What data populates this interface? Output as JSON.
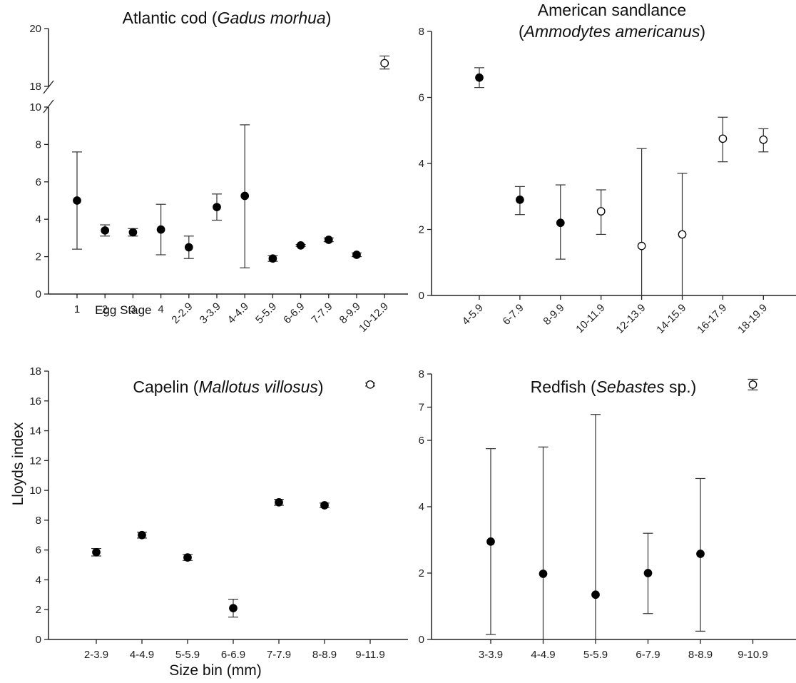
{
  "figure": {
    "ylabel": "Lloyds index",
    "xlabel": "Size bin (mm)"
  },
  "chart_data": [
    {
      "id": "cod",
      "type": "scatter",
      "title_parts": [
        {
          "text": "Atlantic cod (",
          "italic": false
        },
        {
          "text": "Gadus morhua",
          "italic": true
        },
        {
          "text": ")",
          "italic": false
        }
      ],
      "categories": [
        "1",
        "2",
        "3",
        "4",
        "2-2.9",
        "3-3.9",
        "4-4.9",
        "5-5.9",
        "6-6.9",
        "7-7.9",
        "8-9.9",
        "10-12.9"
      ],
      "category_group_label": "Egg Stage",
      "values": [
        5.0,
        3.4,
        3.3,
        3.45,
        2.5,
        4.65,
        5.25,
        1.9,
        2.6,
        2.9,
        2.1,
        18.8
      ],
      "lower": [
        2.4,
        3.1,
        3.1,
        2.1,
        1.9,
        3.95,
        1.4,
        1.75,
        2.55,
        2.8,
        2.0,
        18.6
      ],
      "upper": [
        7.6,
        3.7,
        3.5,
        4.8,
        3.1,
        5.35,
        9.05,
        2.05,
        2.65,
        3.0,
        2.2,
        19.05
      ],
      "filled": [
        true,
        true,
        true,
        true,
        true,
        true,
        true,
        true,
        true,
        true,
        true,
        false
      ],
      "y_ticks": [
        0,
        2,
        4,
        6,
        8,
        10,
        18,
        20
      ],
      "ylim": [
        0,
        20
      ],
      "axis_break": [
        10,
        18
      ],
      "x_tick_rotation": "rotated"
    },
    {
      "id": "sandlance",
      "type": "scatter",
      "title_parts": [
        {
          "text": "American sandlance",
          "italic": false,
          "line": 1
        },
        {
          "text": "(",
          "italic": false,
          "line": 2
        },
        {
          "text": "Ammodytes americanus",
          "italic": true,
          "line": 2
        },
        {
          "text": ")",
          "italic": false,
          "line": 2
        }
      ],
      "categories": [
        "4-5.9",
        "6-7.9",
        "8-9.9",
        "10-11.9",
        "12-13.9",
        "14-15.9",
        "16-17.9",
        "18-19.9"
      ],
      "values": [
        6.6,
        2.9,
        2.2,
        2.55,
        1.5,
        1.85,
        4.75,
        4.72
      ],
      "lower": [
        6.3,
        2.45,
        1.1,
        1.85,
        0.0,
        0.0,
        4.05,
        4.35
      ],
      "upper": [
        6.9,
        3.3,
        3.35,
        3.2,
        4.45,
        3.7,
        5.4,
        5.05
      ],
      "filled": [
        true,
        true,
        true,
        false,
        false,
        false,
        false,
        false
      ],
      "y_ticks": [
        0,
        2,
        4,
        6,
        8
      ],
      "ylim": [
        0,
        8
      ],
      "x_tick_rotation": "rotated"
    },
    {
      "id": "capelin",
      "type": "scatter",
      "title_parts": [
        {
          "text": "Capelin (",
          "italic": false
        },
        {
          "text": "Mallotus villosus",
          "italic": true
        },
        {
          "text": ")",
          "italic": false
        }
      ],
      "categories": [
        "2-3.9",
        "4-4.9",
        "5-5.9",
        "6-6.9",
        "7-7.9",
        "8-8.9",
        "9-11.9"
      ],
      "values": [
        5.85,
        7.0,
        5.5,
        2.1,
        9.2,
        9.0,
        17.1
      ],
      "lower": [
        5.6,
        6.8,
        5.3,
        1.5,
        9.0,
        8.85,
        17.0
      ],
      "upper": [
        6.1,
        7.2,
        5.7,
        2.7,
        9.4,
        9.15,
        17.2
      ],
      "filled": [
        true,
        true,
        true,
        true,
        true,
        true,
        false
      ],
      "y_ticks": [
        0,
        2,
        4,
        6,
        8,
        10,
        12,
        14,
        16,
        18
      ],
      "ylim": [
        0,
        18
      ],
      "x_tick_rotation": "horizontal"
    },
    {
      "id": "redfish",
      "type": "scatter",
      "title_parts": [
        {
          "text": "Redfish (",
          "italic": false
        },
        {
          "text": "Sebastes",
          "italic": true
        },
        {
          "text": " sp.)",
          "italic": false
        }
      ],
      "categories": [
        "3-3.9",
        "4-4.9",
        "5-5.9",
        "6-7.9",
        "8-8.9",
        "9-10.9"
      ],
      "values": [
        2.95,
        1.98,
        1.35,
        2.0,
        2.58,
        7.68
      ],
      "lower": [
        0.15,
        0.0,
        0.0,
        0.78,
        0.25,
        7.52
      ],
      "upper": [
        5.75,
        5.8,
        6.78,
        3.2,
        4.85,
        7.84
      ],
      "filled": [
        true,
        true,
        true,
        true,
        true,
        false
      ],
      "y_ticks": [
        0,
        2,
        4,
        6,
        7,
        8
      ],
      "ylim": [
        0,
        8
      ],
      "x_tick_rotation": "horizontal"
    }
  ]
}
